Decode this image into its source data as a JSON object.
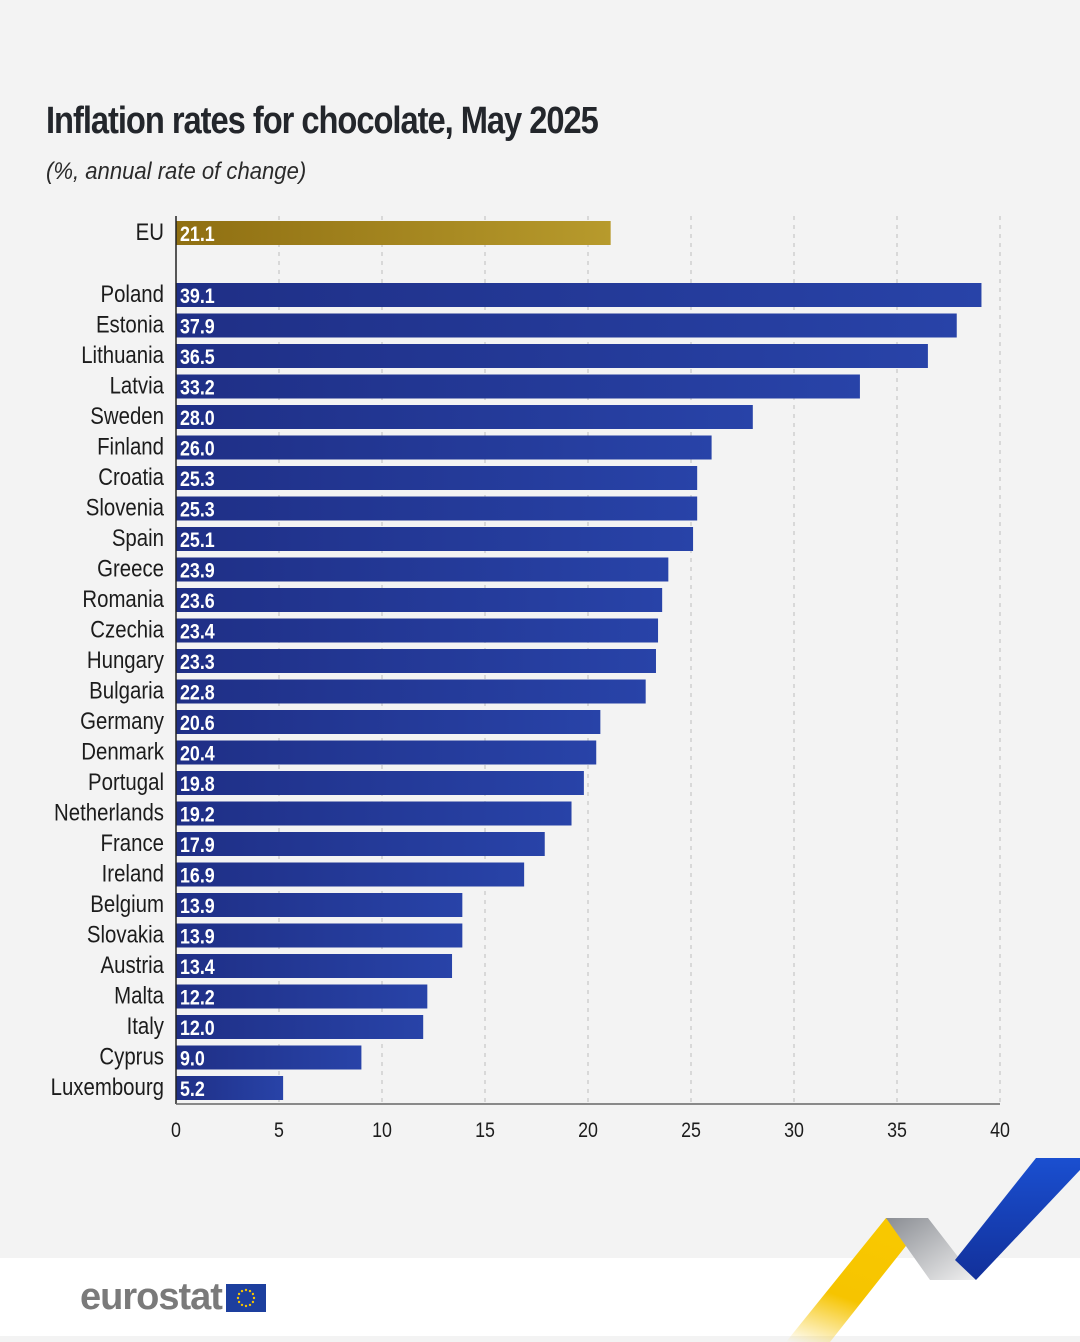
{
  "header": {
    "title": "Inflation rates for chocolate, May 2025",
    "subtitle": "(%, annual rate of change)"
  },
  "branding": {
    "logo_text": "eurostat",
    "logo_icon": "eu-flag-icon"
  },
  "colors": {
    "eu_bar_start": "#8f6f12",
    "eu_bar_end": "#b79a2c",
    "country_bar_start": "#1f2f86",
    "country_bar_end": "#2843a8",
    "accent_yellow": "#f6c400",
    "accent_blue": "#1a46c4"
  },
  "chart_data": {
    "type": "bar",
    "orientation": "horizontal",
    "title": "Inflation rates for chocolate, May 2025",
    "subtitle": "(%, annual rate of change)",
    "xlabel": "",
    "ylabel": "",
    "xlim": [
      0,
      40
    ],
    "xticks": [
      0,
      5,
      10,
      15,
      20,
      25,
      30,
      35,
      40
    ],
    "grid": true,
    "legend": "none",
    "highlight": {
      "category": "EU",
      "value": 21.1
    },
    "categories": [
      "Poland",
      "Estonia",
      "Lithuania",
      "Latvia",
      "Sweden",
      "Finland",
      "Croatia",
      "Slovenia",
      "Spain",
      "Greece",
      "Romania",
      "Czechia",
      "Hungary",
      "Bulgaria",
      "Germany",
      "Denmark",
      "Portugal",
      "Netherlands",
      "France",
      "Ireland",
      "Belgium",
      "Slovakia",
      "Austria",
      "Malta",
      "Italy",
      "Cyprus",
      "Luxembourg"
    ],
    "values": [
      39.1,
      37.9,
      36.5,
      33.2,
      28.0,
      26.0,
      25.3,
      25.3,
      25.1,
      23.9,
      23.6,
      23.4,
      23.3,
      22.8,
      20.6,
      20.4,
      19.8,
      19.2,
      17.9,
      16.9,
      13.9,
      13.9,
      13.4,
      12.2,
      12.0,
      9.0,
      5.2
    ],
    "value_labels": [
      "39.1",
      "37.9",
      "36.5",
      "33.2",
      "28.0",
      "26.0",
      "25.3",
      "25.3",
      "25.1",
      "23.9",
      "23.6",
      "23.4",
      "23.3",
      "22.8",
      "20.6",
      "20.4",
      "19.8",
      "19.2",
      "17.9",
      "16.9",
      "13.9",
      "13.9",
      "13.4",
      "12.2",
      "12.0",
      "9.0",
      "5.2"
    ],
    "highlight_label": "21.1"
  }
}
